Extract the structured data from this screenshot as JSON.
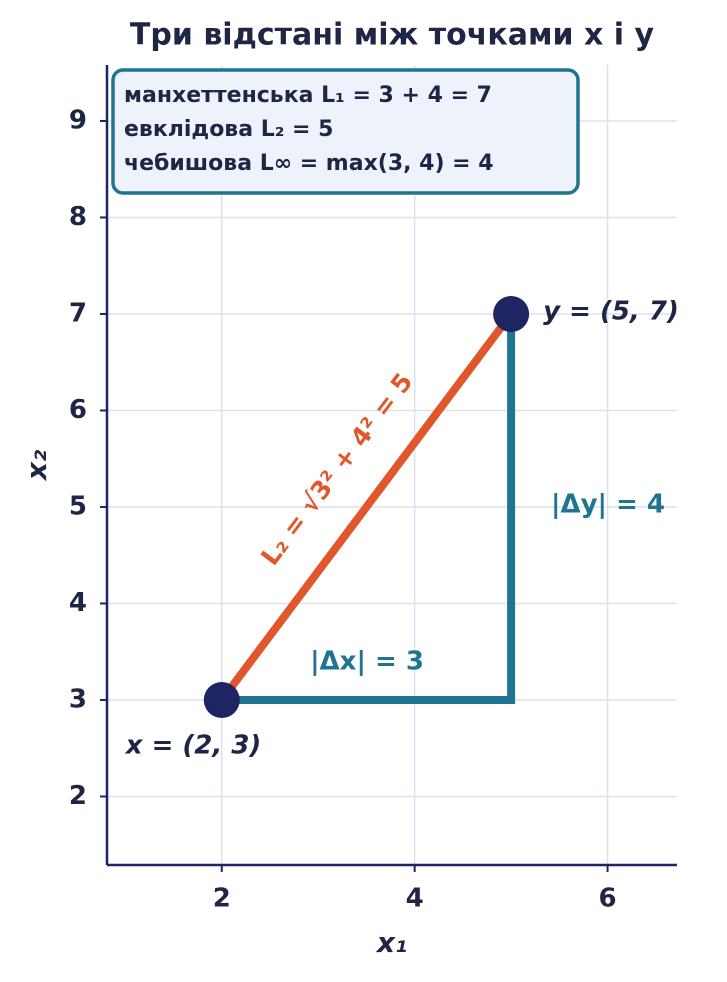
{
  "chart_data": {
    "type": "scatter",
    "title": "Три відстані між точками x і y",
    "xlabel": "x₁",
    "ylabel": "x₂",
    "xlim": [
      0.81,
      6.72
    ],
    "ylim": [
      1.29,
      9.58
    ],
    "xticks": [
      2,
      4,
      6
    ],
    "yticks": [
      2,
      3,
      4,
      5,
      6,
      7,
      8,
      9
    ],
    "grid": true,
    "points": {
      "x": [
        2,
        5
      ],
      "y": [
        3,
        7
      ],
      "labels": [
        "x = (2, 3)",
        "y = (5, 7)"
      ],
      "color": "#1f2563"
    },
    "lines": [
      {
        "x": [
          2,
          5
        ],
        "y": [
          3,
          7
        ],
        "color": "#e0572b"
      },
      {
        "x": [
          2,
          5,
          5
        ],
        "y": [
          3,
          3,
          7
        ],
        "color": "#1f7490"
      }
    ],
    "annotations": [
      "|Δx| = 3",
      "|Δy| = 4",
      "L₂ = √3² + 4² = 5"
    ],
    "info_box": [
      "манхеттенська L₁ = 3 + 4 = 7",
      "евклідова L₂ = 5",
      "чебишова L∞ = max(3, 4) = 4"
    ]
  }
}
